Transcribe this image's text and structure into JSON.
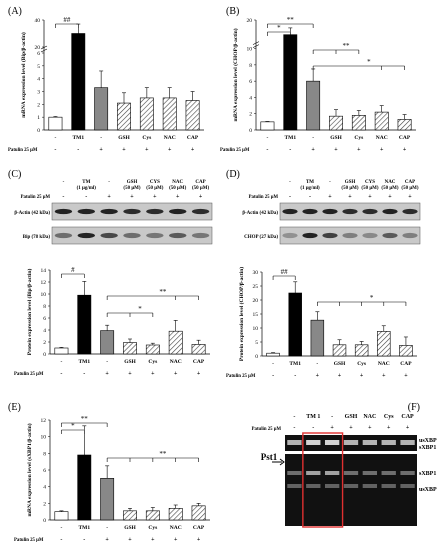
{
  "panels": {
    "A": {
      "label": "(A)"
    },
    "B": {
      "label": "(B)"
    },
    "C": {
      "label": "(C)"
    },
    "D": {
      "label": "(D)"
    },
    "E": {
      "label": "(E)"
    },
    "F": {
      "label": "(F)"
    }
  },
  "common": {
    "categories": [
      "-",
      "TM1",
      "-",
      "GSH",
      "Cys",
      "NAC",
      "CAP"
    ],
    "patulin_label": "Patulin 25 μM",
    "patulin_signs": [
      "-",
      "-",
      "+",
      "+",
      "+",
      "+",
      "+"
    ]
  },
  "blots": {
    "C": {
      "patulin_label": "Patulin 25 μM",
      "headers": [
        "-",
        "TM\n(1 μg/ml)",
        "-",
        "GSH\n(50 μM)",
        "CYS\n(50 μM)",
        "NAC\n(50 μM)",
        "CAP\n(50 μM)"
      ],
      "signs": [
        "-",
        "-",
        "+",
        "+",
        "+",
        "+",
        "+"
      ],
      "rows": [
        "β-Actin (42 kDa)",
        "Bip (78 kDa)"
      ]
    },
    "D": {
      "patulin_label": "Patulin 25 μM",
      "headers": [
        "-",
        "TM\n(1 μg/ml)",
        "-",
        "GSH\n(50 μM)",
        "CYS\n(50 μM)",
        "NAC\n(50 μM)",
        "CAP\n(50 μM)"
      ],
      "signs": [
        "-",
        "-",
        "+",
        "+",
        "+",
        "+",
        "+"
      ],
      "rows": [
        "β-Actin (42 kDa)",
        "CHOP (27 kDa)"
      ]
    }
  },
  "gel": {
    "lanes": [
      "-",
      "TM 1",
      "-",
      "GSH",
      "NAC",
      "Cys",
      "CAP"
    ],
    "signs": [
      "-",
      "-",
      "+",
      "+",
      "+",
      "+",
      "+"
    ],
    "patulin_label": "Patulin 25 μM",
    "enzyme_label": "Pst1",
    "band_labels": [
      "usXBP1",
      "sXBP1",
      "sXBP1",
      "usXBP1"
    ]
  },
  "chart_data": [
    {
      "panel": "A",
      "type": "bar",
      "ylabel": "mRNA expression level (Bip/β-actin)",
      "categories": [
        "-",
        "TM1",
        "-",
        "GSH",
        "Cys",
        "NAC",
        "CAP"
      ],
      "values": [
        1.0,
        30.0,
        3.3,
        2.1,
        2.5,
        2.5,
        2.3
      ],
      "errors": [
        0.05,
        7.0,
        1.3,
        0.8,
        0.8,
        0.8,
        0.7
      ],
      "yticks": [
        "0",
        "1",
        "2",
        "3",
        "4",
        "5",
        "6",
        "20",
        "40"
      ],
      "broken_axis": true,
      "annotations": [
        "##"
      ]
    },
    {
      "panel": "B",
      "type": "bar",
      "ylabel": "mRNA expression level (CHOP/β-actin)",
      "categories": [
        "-",
        "TM1",
        "-",
        "GSH",
        "Cys",
        "NAC",
        "CAP"
      ],
      "values": [
        1.0,
        13.5,
        6.0,
        1.7,
        1.8,
        2.2,
        1.3
      ],
      "errors": [
        0.05,
        3.0,
        1.5,
        0.8,
        0.6,
        0.8,
        0.6
      ],
      "yticks": [
        "0",
        "2",
        "4",
        "6",
        "8",
        "10",
        "20"
      ],
      "broken_axis": true,
      "annotations": [
        "**",
        "*",
        "**",
        "*"
      ]
    },
    {
      "panel": "C",
      "type": "bar",
      "ylabel": "Protein expression level (Bip/β-actin)",
      "categories": [
        "-",
        "TM1",
        "-",
        "GSH",
        "Cys",
        "NAC",
        "CAP"
      ],
      "values": [
        1.0,
        9.8,
        3.9,
        1.9,
        1.5,
        3.8,
        1.6
      ],
      "errors": [
        0.1,
        2.3,
        0.9,
        0.6,
        0.3,
        1.8,
        0.7
      ],
      "ylim": [
        0,
        14
      ],
      "yticks": [
        "0",
        "2",
        "4",
        "6",
        "8",
        "10",
        "12",
        "14"
      ],
      "annotations": [
        "#",
        "*",
        "**"
      ]
    },
    {
      "panel": "D",
      "type": "bar",
      "ylabel": "Protein expression level (CHOP/β-actin)",
      "categories": [
        "-",
        "TM1",
        "-",
        "GSH",
        "Cys",
        "NAC",
        "CAP"
      ],
      "values": [
        1.0,
        22.5,
        12.8,
        4.0,
        4.0,
        8.8,
        3.8
      ],
      "errors": [
        0.2,
        4.0,
        3.0,
        1.8,
        1.2,
        2.0,
        3.0
      ],
      "ylim": [
        0,
        30
      ],
      "yticks": [
        "0",
        "5",
        "10",
        "15",
        "20",
        "25",
        "30"
      ],
      "annotations": [
        "##",
        "*"
      ]
    },
    {
      "panel": "E",
      "type": "bar",
      "ylabel": "mRNA expression level (sXBP1/β-actin)",
      "categories": [
        "-",
        "TM1",
        "-",
        "GSH",
        "Cys",
        "NAC",
        "CAP"
      ],
      "values": [
        1.0,
        7.8,
        5.0,
        1.1,
        1.1,
        1.4,
        1.7
      ],
      "errors": [
        0.1,
        3.5,
        1.5,
        0.3,
        0.4,
        0.4,
        0.3
      ],
      "ylim": [
        0,
        12
      ],
      "yticks": [
        "0",
        "2",
        "4",
        "6",
        "8",
        "10",
        "12"
      ],
      "annotations": [
        "*",
        "**",
        "**"
      ]
    }
  ]
}
